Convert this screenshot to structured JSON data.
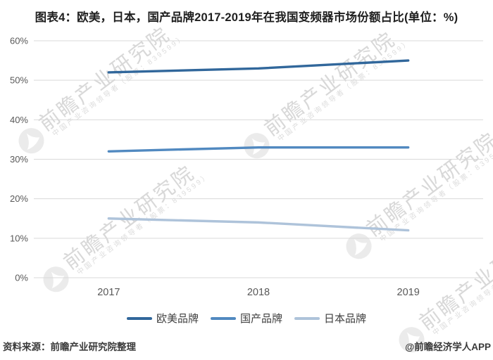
{
  "title": "图表4：欧美，日本，国产品牌2017-2019年在我国变频器市场份额占比(单位：%)",
  "chart_data": {
    "type": "line",
    "categories": [
      "2017",
      "2018",
      "2019"
    ],
    "series": [
      {
        "name": "欧美品牌",
        "values": [
          52,
          53,
          55
        ],
        "color": "#31679b"
      },
      {
        "name": "国产品牌",
        "values": [
          32,
          33,
          33
        ],
        "color": "#5189c0"
      },
      {
        "name": "日本品牌",
        "values": [
          15,
          14,
          12
        ],
        "color": "#aec3da"
      }
    ],
    "title": "图表4：欧美，日本，国产品牌2017-2019年在我国变频器市场份额占比(单位：%)",
    "xlabel": "",
    "ylabel": "",
    "ylim": [
      0,
      60
    ],
    "yticks": [
      "0%",
      "10%",
      "20%",
      "30%",
      "40%",
      "50%",
      "60%"
    ],
    "grid": "horizontal",
    "legend_position": "bottom"
  },
  "watermark": {
    "text": "前瞻产业研究院",
    "subtext": "中国产业咨询领导者（股票：839599）"
  },
  "footer": {
    "source": "资料来源：前瞻产业研究院整理",
    "credit": "@前瞻经济学人APP"
  },
  "colors": {
    "grid": "#d9d9d9",
    "axis_label": "#595959",
    "title_text": "#1f1f1f",
    "footer_text": "#3a3a3a"
  }
}
